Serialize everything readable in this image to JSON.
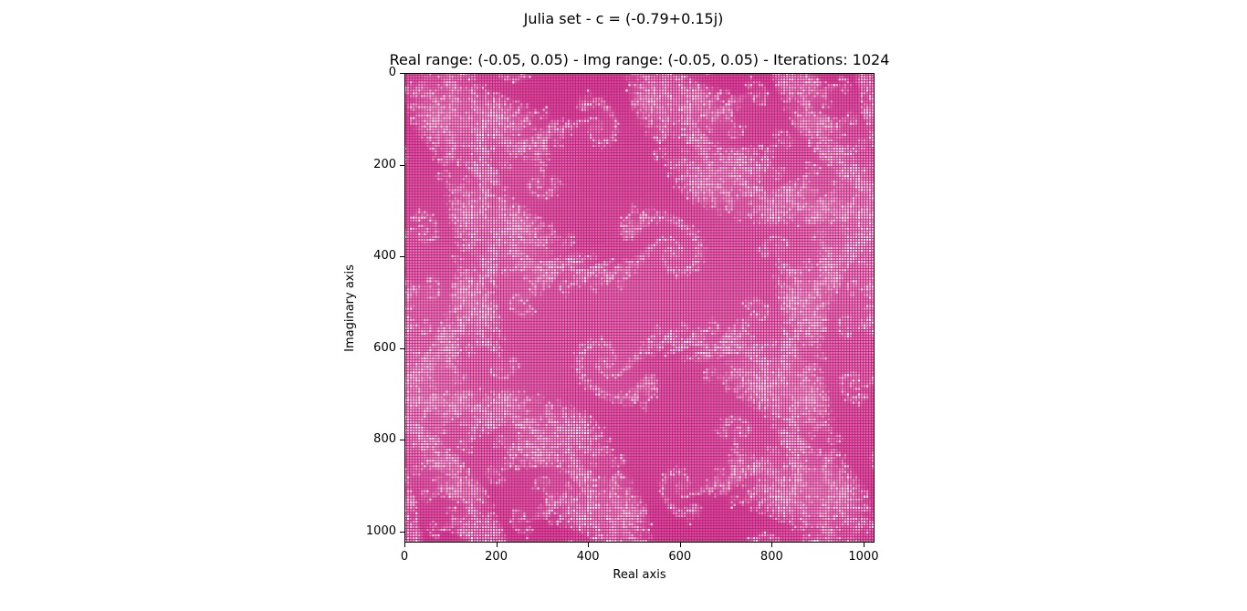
{
  "chart_data": {
    "type": "heatmap",
    "suptitle": "Julia set - c = (-0.79+0.15j)",
    "title": "Real range: (-0.05, 0.05) - Img range: (-0.05, 0.05) - Iterations: 1024",
    "xlabel": "Real axis",
    "ylabel": "Imaginary axis",
    "c_real": -0.79,
    "c_imag": 0.15,
    "real_range": [
      -0.05,
      0.05
    ],
    "imag_range": [
      -0.05,
      0.05
    ],
    "iterations": 1024,
    "xlim": [
      0,
      1024
    ],
    "ylim": [
      1024,
      0
    ],
    "xticks": [
      0,
      200,
      400,
      600,
      800,
      1000
    ],
    "xtick_labels": [
      "0",
      "200",
      "400",
      "600",
      "800",
      "1000"
    ],
    "yticks": [
      0,
      200,
      400,
      600,
      800,
      1000
    ],
    "ytick_labels": [
      "0",
      "200",
      "400",
      "600",
      "800",
      "1000"
    ],
    "colormap": {
      "base": "#c2187a",
      "light": "#d9549d",
      "highlight": "#ffffff"
    }
  }
}
